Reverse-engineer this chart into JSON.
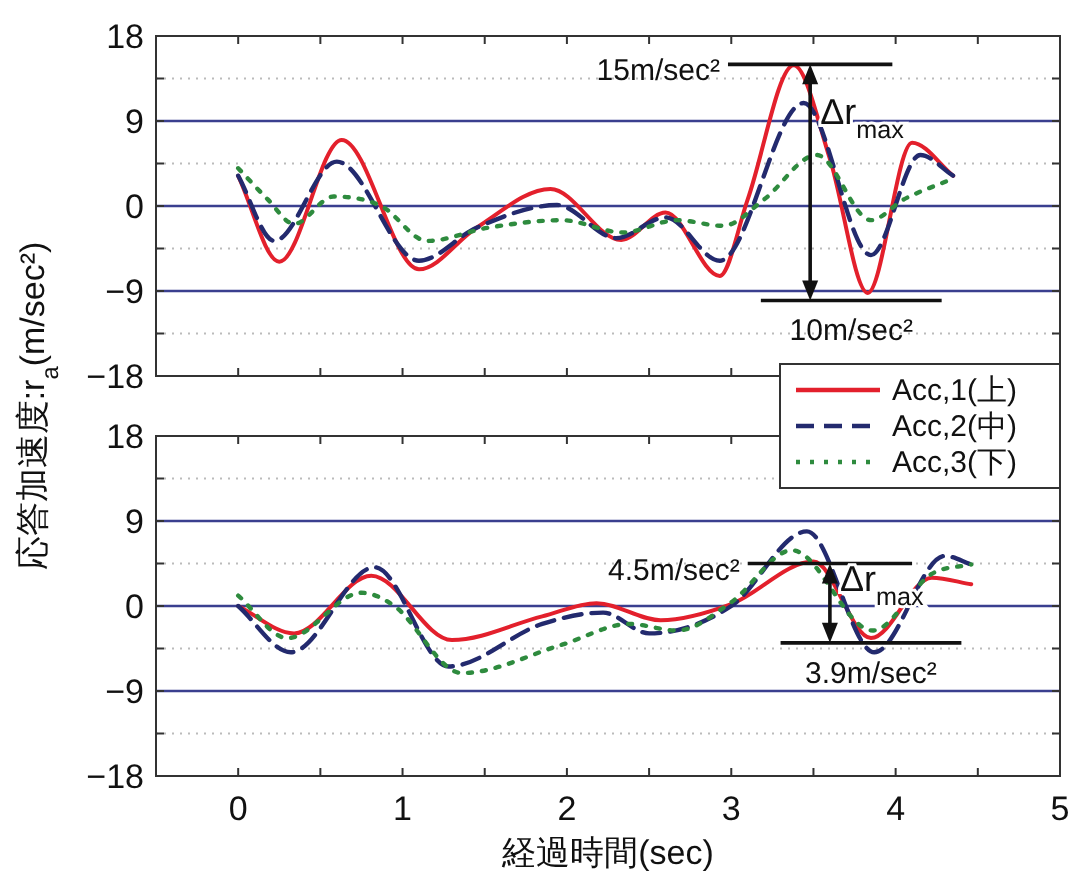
{
  "chart_data": [
    {
      "type": "line",
      "ylabel": "応答加速度:r$_{a}$(m/sec²)",
      "xlim": [
        -0.5,
        5
      ],
      "xticks": [
        0,
        {
          "value": 0.5,
          "label": null
        },
        1,
        {
          "value": 1.5,
          "label": null
        },
        2,
        {
          "value": 2.5,
          "label": null
        },
        3,
        {
          "value": 3.5,
          "label": null
        },
        4,
        {
          "value": 4.5,
          "label": null
        },
        5
      ],
      "ylim": [
        -18,
        18
      ],
      "yticks": [
        -18,
        {
          "value": -13.5,
          "label": null
        },
        -9,
        {
          "value": -4.5,
          "label": null
        },
        0,
        {
          "value": 4.5,
          "label": null
        },
        9,
        {
          "value": 13.5,
          "label": null
        },
        18
      ],
      "tick_labels": "y",
      "grid": "y",
      "legend": "bottom right",
      "series": [
        {
          "name": "Acc,1(上)",
          "color": "#e3202c",
          "line_style": "solid",
          "x": [
            0,
            0.25,
            0.63,
            1.1,
            1.45,
            1.9,
            2.33,
            2.6,
            2.93,
            3.1,
            3.38,
            3.6,
            3.83,
            4.1,
            4.35
          ],
          "values": [
            3.2,
            -5.9,
            7.0,
            -6.7,
            -2.3,
            1.8,
            -3.6,
            -0.7,
            -7.4,
            0.7,
            14.9,
            5,
            -9.2,
            6.7,
            3.2
          ]
        },
        {
          "name": "Acc,2(中)",
          "color": "#232a6e",
          "line_style": "dashed",
          "x": [
            0,
            0.22,
            0.6,
            1.1,
            1.45,
            1.94,
            2.3,
            2.6,
            2.93,
            3.44,
            3.85,
            4.15,
            4.35
          ],
          "values": [
            3.2,
            -3.7,
            4.7,
            -5.8,
            -2.3,
            0.1,
            -3.4,
            -1.2,
            -5.8,
            10.9,
            -5.2,
            5.4,
            3.2
          ]
        },
        {
          "name": "Acc,3(下)",
          "color": "#2e8b3e",
          "line_style": "dotted",
          "x": [
            0,
            0.18,
            0.34,
            0.58,
            0.87,
            1.15,
            1.52,
            1.97,
            2.34,
            2.67,
            2.95,
            3.2,
            3.52,
            3.85,
            4.05,
            4.35
          ],
          "values": [
            4,
            0.7,
            -1.9,
            1.0,
            0,
            -3.7,
            -2.3,
            -1.5,
            -2.8,
            -1.5,
            -2.1,
            0.7,
            5.4,
            -1.5,
            0.7,
            2.9
          ]
        }
      ],
      "ref_lines": [
        {
          "axis": "y",
          "value": 15,
          "label": "15m/sec²"
        },
        {
          "axis": "y",
          "value": -10,
          "label": "10m/sec²"
        }
      ],
      "annotations": [
        "Δr$_{max}$"
      ]
    },
    {
      "type": "line",
      "xlabel": "経過時間(sec)",
      "xlim": [
        -0.5,
        5
      ],
      "xticks": [
        0,
        {
          "value": 0.5,
          "label": null
        },
        1,
        {
          "value": 1.5,
          "label": null
        },
        2,
        {
          "value": 2.5,
          "label": null
        },
        3,
        {
          "value": 3.5,
          "label": null
        },
        4,
        {
          "value": 4.5,
          "label": null
        },
        5
      ],
      "ylim": [
        -18,
        18
      ],
      "yticks": [
        -18,
        {
          "value": -13.5,
          "label": null
        },
        -9,
        {
          "value": -4.5,
          "label": null
        },
        0,
        {
          "value": 4.5,
          "label": null
        },
        9,
        {
          "value": 13.5,
          "label": null
        },
        18
      ],
      "grid": "y",
      "series": [
        {
          "color": "#e3202c",
          "line_style": "solid",
          "x": [
            0,
            0.34,
            0.81,
            1.3,
            1.85,
            2.18,
            2.57,
            3,
            3.5,
            3.85,
            4.22,
            4.46
          ],
          "values": [
            0,
            -2.9,
            3.2,
            -3.6,
            -1.1,
            0.3,
            -1.5,
            0.2,
            4.7,
            -3.4,
            3.0,
            2.3
          ]
        },
        {
          "color": "#232a6e",
          "line_style": "dashed",
          "x": [
            0,
            0.32,
            0.83,
            1.28,
            1.85,
            2.22,
            2.5,
            3,
            3.46,
            3.87,
            4.3,
            4.46
          ],
          "values": [
            0,
            -4.9,
            4.1,
            -6.4,
            -1.9,
            -0.7,
            -2.9,
            0,
            7.9,
            -4.9,
            5.3,
            4.4
          ]
        },
        {
          "color": "#2e8b3e",
          "line_style": "dotted",
          "x": [
            0,
            0.3,
            0.75,
            0.95,
            1.36,
            1.97,
            2.38,
            2.67,
            3,
            3.37,
            3.86,
            4.22,
            4.46
          ],
          "values": [
            1.1,
            -3.4,
            1.4,
            0,
            -7.1,
            -4.1,
            -1.9,
            -2.6,
            0.4,
            5.9,
            -2.6,
            3.4,
            4.4
          ]
        }
      ],
      "ref_lines": [
        {
          "axis": "y",
          "value": 4.5,
          "label": "4.5m/sec²"
        },
        {
          "axis": "y",
          "value": -3.9,
          "label": "3.9m/sec²"
        }
      ],
      "annotations": [
        "Δr$_{max}$"
      ]
    }
  ]
}
